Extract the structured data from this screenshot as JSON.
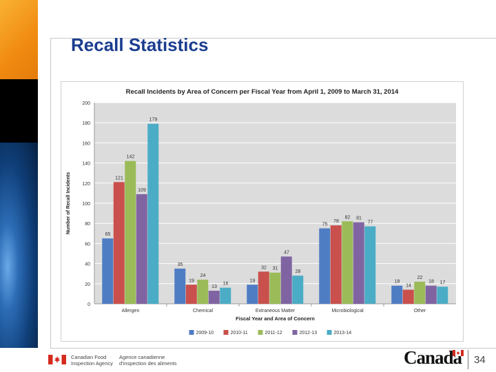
{
  "slide": {
    "title": "Recall Statistics",
    "page_number": "34"
  },
  "footer": {
    "dept_en_line1": "Canadian Food",
    "dept_en_line2": "Inspection Agency",
    "dept_fr_line1": "Agence canadienne",
    "dept_fr_line2": "d'inspection des aliments",
    "wordmark": "Canada"
  },
  "colors": {
    "title": "#1b3d8f",
    "plot_bg": "#dcdcdc"
  },
  "chart_data": {
    "type": "bar",
    "title": "Recall Incidents by Area of Concern per Fiscal Year from April 1, 2009 to March 31, 2014",
    "xlabel": "Fiscal Year and Area of Concern",
    "ylabel": "Number of Recall Incidents",
    "ylim": [
      0,
      200
    ],
    "yticks": [
      0,
      20,
      40,
      60,
      80,
      100,
      120,
      140,
      160,
      180,
      200
    ],
    "grid": true,
    "legend": "bottom",
    "categories": [
      "Allergen",
      "Chemical",
      "Extraneous Matter",
      "Microbiological",
      "Other"
    ],
    "series": [
      {
        "name": "2009-10",
        "color": "#4f7dc4",
        "values": [
          65,
          35,
          19,
          75,
          18
        ]
      },
      {
        "name": "2010-11",
        "color": "#c9504c",
        "values": [
          121,
          19,
          32,
          78,
          14
        ]
      },
      {
        "name": "2011-12",
        "color": "#9bbb59",
        "values": [
          142,
          24,
          31,
          82,
          22
        ]
      },
      {
        "name": "2012-13",
        "color": "#8064a2",
        "values": [
          109,
          13,
          47,
          81,
          18
        ]
      },
      {
        "name": "2013-14",
        "color": "#4bacc6",
        "values": [
          179,
          16,
          28,
          77,
          17
        ]
      }
    ]
  }
}
